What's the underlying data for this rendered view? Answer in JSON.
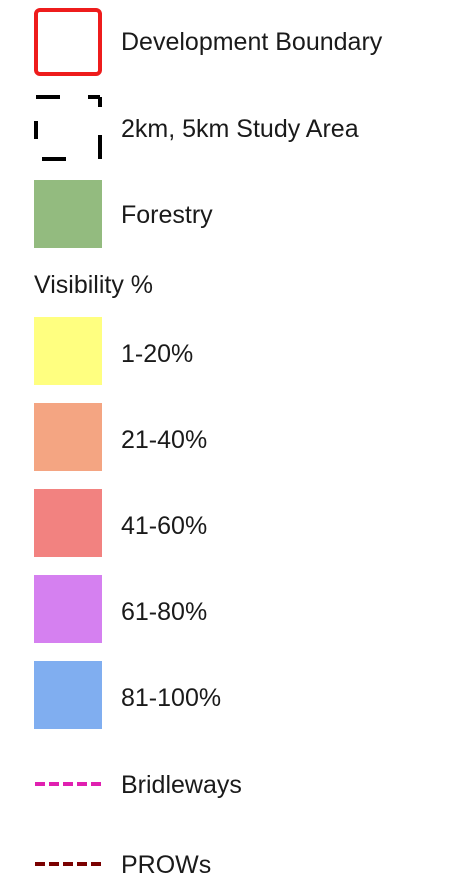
{
  "legend": {
    "items": [
      {
        "label": "Development Boundary",
        "symbol": "boundary-outline",
        "stroke": "#ee1c1c"
      },
      {
        "label": "2km, 5km Study Area",
        "symbol": "dashed-outline",
        "stroke": "#000000"
      },
      {
        "label": "Forestry",
        "symbol": "fill",
        "fill": "#93bb7f"
      }
    ],
    "visibility_heading": "Visibility %",
    "visibility_classes": [
      {
        "label": "1-20%",
        "fill": "#ffff80"
      },
      {
        "label": "21-40%",
        "fill": "#f4a582"
      },
      {
        "label": "41-60%",
        "fill": "#f28280"
      },
      {
        "label": "61-80%",
        "fill": "#d580f0"
      },
      {
        "label": "81-100%",
        "fill": "#80aef0"
      }
    ],
    "lines": [
      {
        "label": "Bridleways",
        "stroke": "#e020b0"
      },
      {
        "label": "PROWs",
        "stroke": "#7a0000"
      }
    ]
  }
}
